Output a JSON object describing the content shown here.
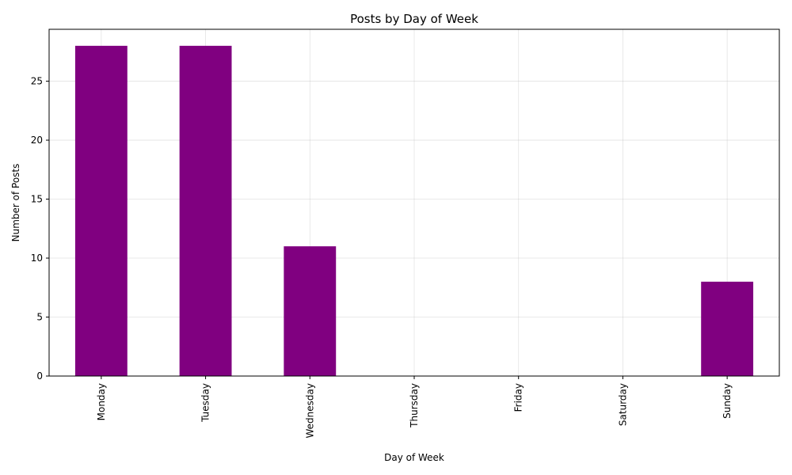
{
  "chart_data": {
    "type": "bar",
    "title": "Posts by Day of Week",
    "xlabel": "Day of Week",
    "ylabel": "Number of Posts",
    "categories": [
      "Monday",
      "Tuesday",
      "Wednesday",
      "Thursday",
      "Friday",
      "Saturday",
      "Sunday"
    ],
    "values": [
      28,
      28,
      11,
      0,
      0,
      0,
      8
    ],
    "ylim": [
      0,
      29.4
    ],
    "yticks": [
      0,
      5,
      10,
      15,
      20,
      25
    ],
    "grid": true,
    "bar_color": "#800080",
    "legend": "none"
  }
}
